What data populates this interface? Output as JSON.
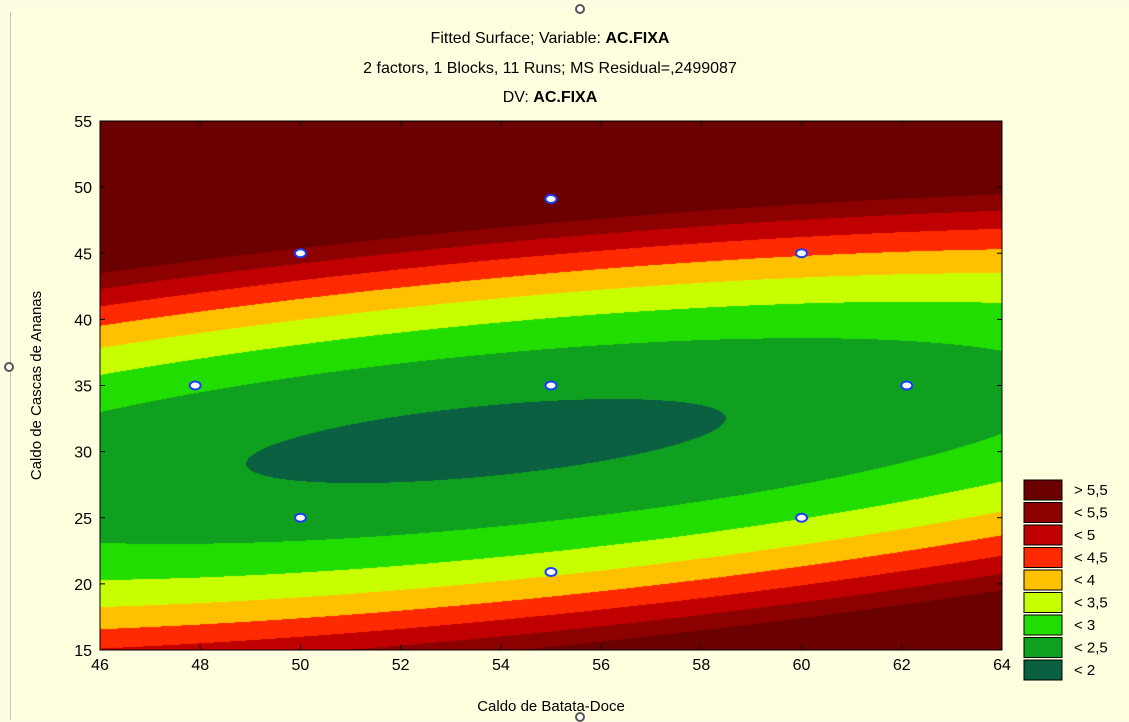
{
  "chart_data": {
    "type": "contour",
    "title_prefix": "Fitted Surface; Variable: ",
    "title_variable": "AC.FIXA",
    "subtitle": "2 factors, 1 Blocks, 11 Runs; MS Residual=,2499087",
    "dv_prefix": "DV: ",
    "dv_variable": "AC.FIXA",
    "xlabel": "Caldo de Batata-Doce",
    "ylabel": "Caldo de Cascas de Ananas",
    "xlim": [
      46,
      64
    ],
    "ylim": [
      15,
      55
    ],
    "xticks": [
      "46",
      "48",
      "50",
      "52",
      "54",
      "56",
      "58",
      "60",
      "62",
      "64"
    ],
    "yticks": [
      "15",
      "20",
      "25",
      "30",
      "35",
      "40",
      "45",
      "50",
      "55"
    ],
    "grid": false,
    "legend_position": "bottom-right",
    "legend": [
      {
        "label": "> 5,5",
        "color": "#6a0000"
      },
      {
        "label": "< 5,5",
        "color": "#8c0000"
      },
      {
        "label": "< 5",
        "color": "#c00000"
      },
      {
        "label": "< 4,5",
        "color": "#ff2a00"
      },
      {
        "label": "< 4",
        "color": "#ffc000"
      },
      {
        "label": "< 3,5",
        "color": "#c8ff00"
      },
      {
        "label": "< 3",
        "color": "#22dd00"
      },
      {
        "label": "< 2,5",
        "color": "#10a020"
      },
      {
        "label": "< 2",
        "color": "#0a6040"
      }
    ],
    "design_points": [
      {
        "x": 50,
        "y": 45
      },
      {
        "x": 60,
        "y": 45
      },
      {
        "x": 50,
        "y": 25
      },
      {
        "x": 60,
        "y": 25
      },
      {
        "x": 47.9,
        "y": 35
      },
      {
        "x": 62.1,
        "y": 35
      },
      {
        "x": 55,
        "y": 49.1
      },
      {
        "x": 55,
        "y": 20.9
      },
      {
        "x": 55,
        "y": 35
      }
    ],
    "surface": {
      "center": [
        53.7,
        30.8
      ],
      "minimum": 1.9,
      "theta_deg": 26,
      "major_semi": 16.4,
      "minor_semi": 7.8
    }
  }
}
